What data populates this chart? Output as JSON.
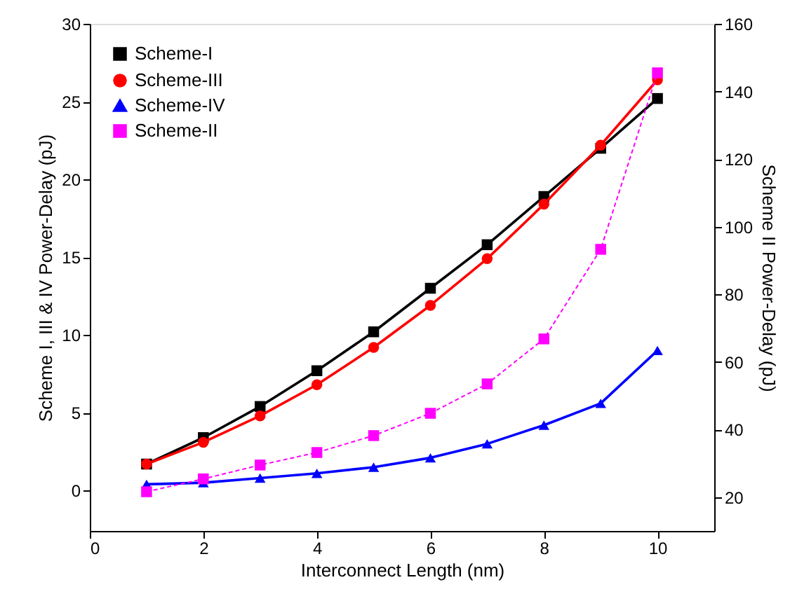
{
  "chart_data": {
    "type": "line",
    "xlabel": "Interconnect Length (nm)",
    "ylabel": "Scheme I, III & IV Power-Delay (pJ)",
    "y2label": "Scheme II Power-Delay (pJ)",
    "x": [
      1,
      2,
      3,
      4,
      5,
      6,
      7,
      8,
      9,
      10
    ],
    "series": [
      {
        "name": "Scheme-I",
        "color": "#000000",
        "marker": "square",
        "line_style": "solid",
        "values": [
          1.7,
          3.4,
          5.4,
          7.7,
          10.2,
          13.0,
          15.8,
          18.9,
          22.0,
          25.2
        ]
      },
      {
        "name": "Scheme-III",
        "color": "#ff0000",
        "marker": "circle",
        "line_style": "solid",
        "values": [
          1.7,
          3.1,
          4.8,
          6.8,
          9.2,
          11.9,
          14.9,
          18.4,
          22.2,
          26.4
        ]
      },
      {
        "name": "Scheme-IV",
        "color": "#0000ff",
        "marker": "triangle",
        "line_style": "solid",
        "values": [
          0.4,
          0.5,
          0.8,
          1.1,
          1.5,
          2.1,
          3.0,
          4.2,
          5.6,
          9.0
        ]
      },
      {
        "name": "Scheme-II",
        "color": "#ff00ff",
        "marker": "square",
        "line_style": "dashed",
        "axis": "y2",
        "values": [
          21.6,
          25.4,
          29.5,
          33.2,
          38.2,
          44.8,
          53.5,
          66.8,
          93.3,
          145.5
        ]
      }
    ],
    "xlim": [
      0,
      11
    ],
    "xticks": [
      0,
      2,
      4,
      6,
      8,
      10
    ],
    "ylim": [
      -2.6,
      30
    ],
    "yticks": [
      0,
      5,
      10,
      15,
      20,
      25,
      30
    ],
    "y2lim": [
      10,
      160
    ],
    "y2ticks": [
      20,
      40,
      60,
      80,
      100,
      120,
      140,
      160
    ],
    "grid": false,
    "legend": "top left"
  }
}
